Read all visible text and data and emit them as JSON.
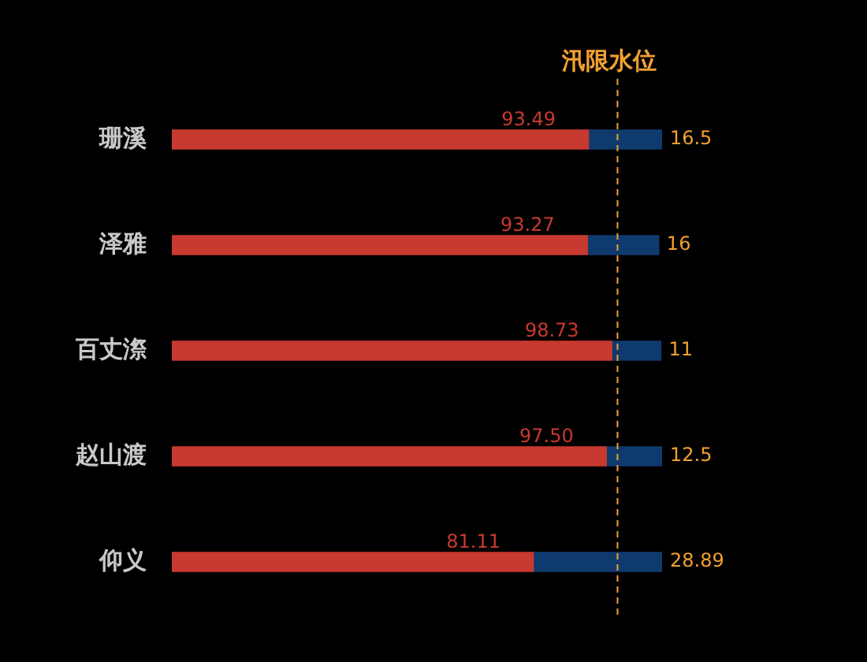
{
  "chart_data": {
    "type": "bar",
    "orientation": "horizontal",
    "stacked": true,
    "tick_labels": "y",
    "categories": [
      "珊溪",
      "泽雅",
      "百丈漈",
      "赵山渡",
      "仰义"
    ],
    "xlim": [
      0,
      110
    ],
    "series": [
      {
        "color": "#c8392f",
        "values": [
          93.49,
          93.27,
          98.73,
          97.5,
          81.11
        ],
        "value_labels": [
          "93.49",
          "93.27",
          "98.73",
          "97.50",
          "81.11"
        ]
      },
      {
        "color": "#0f3a6e",
        "values": [
          16.5,
          16,
          11,
          12.5,
          28.89
        ],
        "value_labels": [
          "16.5",
          "16",
          "11",
          "12.5",
          "28.89"
        ]
      }
    ],
    "ref_lines": [
      {
        "axis": "x",
        "value": 100,
        "label": "汛限水位",
        "color": "#f0a030",
        "line_style": "dashed"
      }
    ]
  }
}
